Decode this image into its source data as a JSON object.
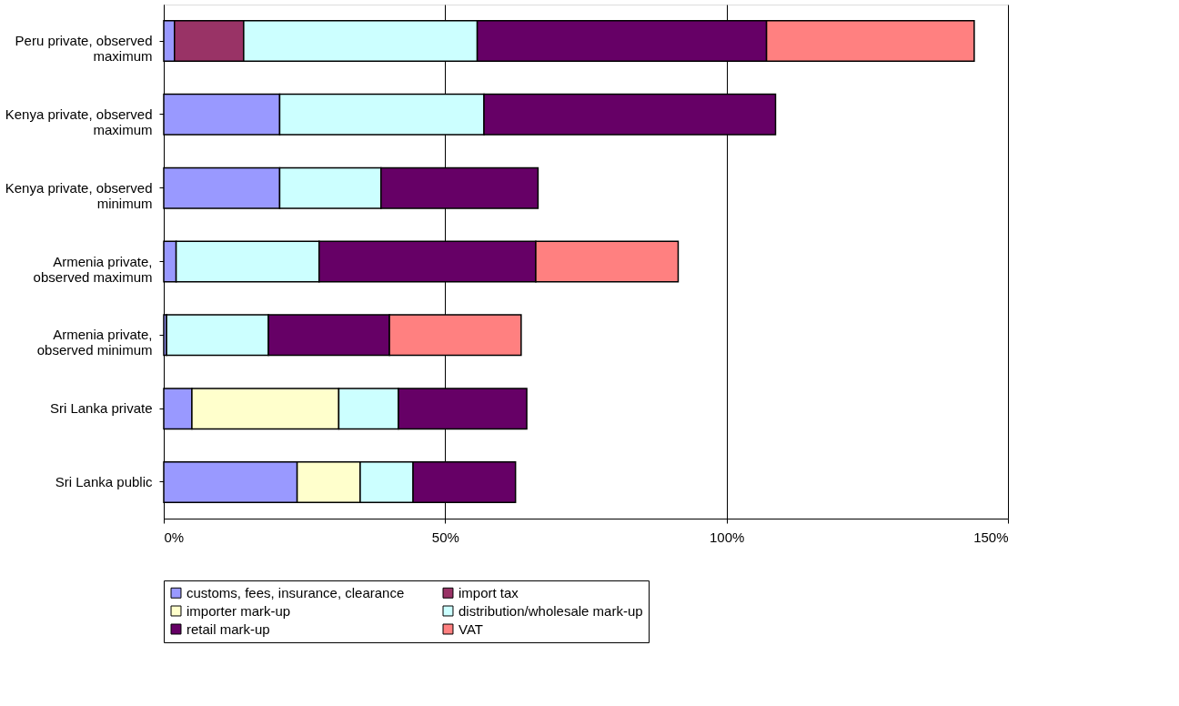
{
  "chart_data": {
    "type": "bar",
    "orientation": "horizontal",
    "stacked": true,
    "categories": [
      "Peru private, observed maximum",
      "Kenya private, observed maximum",
      "Kenya private, observed minimum",
      "Armenia private, observed maximum",
      "Armenia private, observed minimum",
      "Sri Lanka private",
      "Sri Lanka public"
    ],
    "series": [
      {
        "name": "customs, fees, insurance, clearance",
        "color": "#9999ff",
        "values": [
          1.9,
          20.6,
          20.6,
          2.2,
          0.5,
          5.0,
          23.7
        ]
      },
      {
        "name": "import tax",
        "color": "#993366",
        "values": [
          12.3,
          null,
          null,
          null,
          null,
          null,
          null
        ]
      },
      {
        "name": "importer mark-up",
        "color": "#ffffcc",
        "values": [
          null,
          null,
          null,
          null,
          null,
          26.1,
          11.2
        ]
      },
      {
        "name": "distribution/wholesale mark-up",
        "color": "#ccffff",
        "values": [
          41.5,
          36.3,
          18.0,
          25.4,
          18.1,
          10.6,
          9.4
        ]
      },
      {
        "name": "retail mark-up",
        "color": "#660066",
        "values": [
          51.4,
          51.8,
          27.9,
          38.5,
          21.5,
          22.8,
          18.2
        ]
      },
      {
        "name": "VAT",
        "color": "#ff8080",
        "values": [
          36.9,
          null,
          null,
          25.3,
          23.4,
          null,
          null
        ]
      }
    ],
    "xlim": [
      0,
      150
    ],
    "xticks": [
      {
        "value": 0,
        "label": "0%"
      },
      {
        "value": 50,
        "label": "50%"
      },
      {
        "value": 100,
        "label": "100%"
      },
      {
        "value": 150,
        "label": "150%"
      }
    ],
    "grid": "x",
    "legend": "bottom"
  }
}
